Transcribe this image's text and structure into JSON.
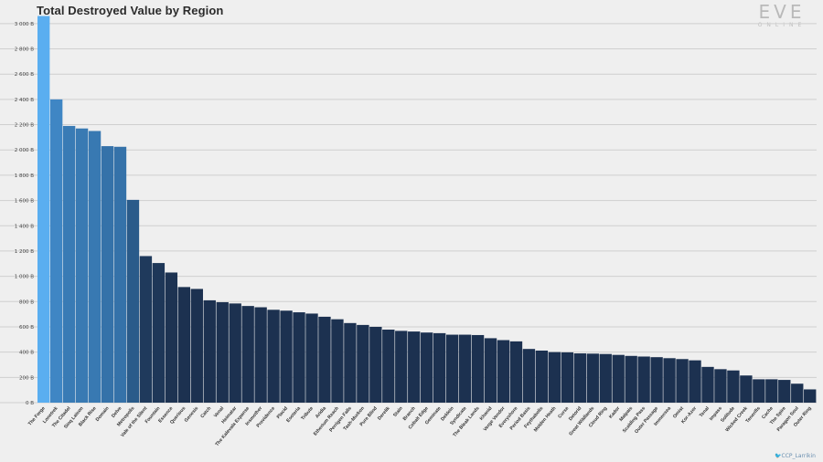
{
  "chart_data": {
    "type": "bar",
    "title": "Total Destroyed Value by Region",
    "xlabel": "",
    "ylabel": "",
    "ylim": [
      0,
      3000
    ],
    "yticks": [
      "0 B",
      "200 B",
      "400 B",
      "600 B",
      "800 B",
      "1 000 B",
      "1 200 B",
      "1 400 B",
      "1 600 B",
      "1 800 B",
      "2 000 B",
      "2 200 B",
      "2 400 B",
      "2 600 B",
      "2 800 B",
      "3 000 B"
    ],
    "ytick_values": [
      0,
      200,
      400,
      600,
      800,
      1000,
      1200,
      1400,
      1600,
      1800,
      2000,
      2200,
      2400,
      2600,
      2800,
      3000
    ],
    "grid": true,
    "colors": {
      "max": "#5aaef0",
      "high": "#3f86c4",
      "mid": "#2a5b8a",
      "low": "#1c3150"
    },
    "categories": [
      "The Forge",
      "Lonetrek",
      "The Citadel",
      "Sinq Laison",
      "Black Rise",
      "Domain",
      "Delve",
      "Metropolis",
      "Vale of the Silent",
      "Fountain",
      "Essence",
      "Querious",
      "Genesis",
      "Catch",
      "Venal",
      "Heimatar",
      "The Kalevala Expanse",
      "Insmother",
      "Providence",
      "Placid",
      "Esoteria",
      "Tribute",
      "Aridia",
      "Etherium Reach",
      "Perrigen Falls",
      "Tash-Murkon",
      "Pure Blind",
      "Derelik",
      "Stain",
      "Branch",
      "Cobalt Edge",
      "Geminate",
      "Deklein",
      "Syndicate",
      "The Bleak Lands",
      "Khanid",
      "Verge Vendor",
      "Everyshore",
      "Period Basis",
      "Feythabolis",
      "Molden Heath",
      "Curse",
      "Detorid",
      "Great Wildlands",
      "Cloud Ring",
      "Kador",
      "Malpais",
      "Scalding Pass",
      "Outer Passage",
      "Immensea",
      "Omist",
      "Kor-Azor",
      "Tenal",
      "Impass",
      "Solitude",
      "Wicked Creek",
      "Tenerifis",
      "Cache",
      "The Spire",
      "Paragon Soul",
      "Outer Ring"
    ],
    "values": [
      3060,
      2400,
      2190,
      2170,
      2150,
      2030,
      2025,
      1605,
      1160,
      1105,
      1030,
      915,
      900,
      810,
      795,
      785,
      765,
      755,
      735,
      728,
      715,
      705,
      680,
      660,
      630,
      615,
      600,
      578,
      568,
      563,
      555,
      550,
      538,
      538,
      535,
      510,
      495,
      485,
      425,
      412,
      400,
      398,
      390,
      388,
      385,
      378,
      370,
      365,
      360,
      352,
      345,
      335,
      283,
      265,
      255,
      215,
      185,
      185,
      180,
      150,
      105
    ]
  },
  "logo": {
    "main": "EVE",
    "sub": "ONLINE"
  },
  "credit": "🐦CCP_Larrikin"
}
